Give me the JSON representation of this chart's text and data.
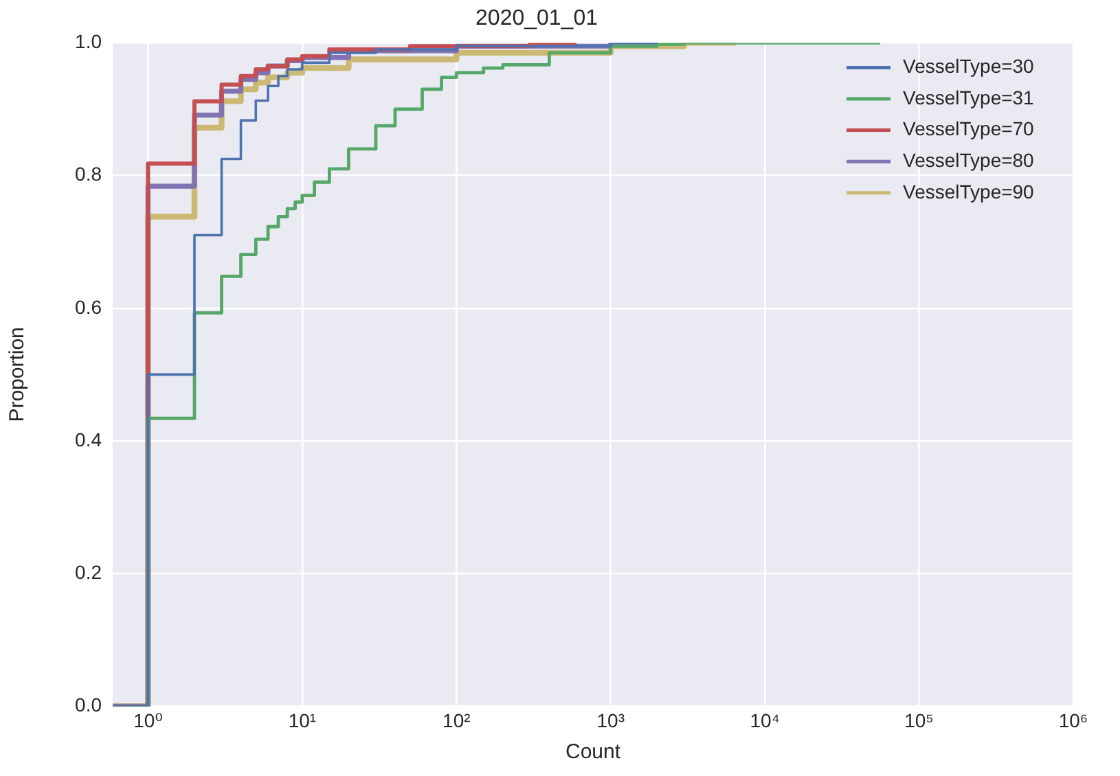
{
  "chart_data": {
    "type": "step",
    "title": "2020_01_01",
    "xlabel": "Count",
    "ylabel": "Proportion",
    "log": "x",
    "grid": true,
    "legend": "top right",
    "marker": "none",
    "line_style": "solid",
    "xlim": [
      0.59,
      1000000
    ],
    "ylim": [
      0,
      1
    ],
    "xticks": [
      {
        "value": 1,
        "label": "10⁰"
      },
      {
        "value": 10,
        "label": "10¹"
      },
      {
        "value": 100,
        "label": "10²"
      },
      {
        "value": 1000,
        "label": "10³"
      },
      {
        "value": 10000,
        "label": "10⁴"
      },
      {
        "value": 100000,
        "label": "10⁵"
      },
      {
        "value": 1000000,
        "label": "10⁶"
      }
    ],
    "yticks": [
      {
        "value": 0,
        "label": "0.0"
      },
      {
        "value": 0.2,
        "label": "0.2"
      },
      {
        "value": 0.4,
        "label": "0.4"
      },
      {
        "value": 0.6,
        "label": "0.6"
      },
      {
        "value": 0.8,
        "label": "0.8"
      },
      {
        "value": 1,
        "label": "1.0"
      }
    ],
    "series": [
      {
        "name": "VesselType=30",
        "color": "#4c72b0",
        "x": [
          0.59,
          1,
          2,
          3,
          4,
          5,
          6,
          7,
          8,
          10,
          15,
          30,
          100,
          1000,
          2000
        ],
        "values": [
          0,
          0.5,
          0.71,
          0.825,
          0.883,
          0.913,
          0.935,
          0.95,
          0.96,
          0.97,
          0.985,
          0.99,
          0.995,
          1,
          1
        ]
      },
      {
        "name": "VesselType=31",
        "color": "#55a868",
        "x": [
          0.59,
          1,
          2,
          3,
          4,
          5,
          6,
          7,
          8,
          9,
          10,
          12,
          15,
          20,
          30,
          40,
          60,
          80,
          100,
          150,
          200,
          400,
          1000,
          2000,
          3000,
          56000
        ],
        "values": [
          0,
          0.434,
          0.593,
          0.648,
          0.681,
          0.704,
          0.723,
          0.738,
          0.75,
          0.76,
          0.77,
          0.79,
          0.81,
          0.84,
          0.875,
          0.9,
          0.93,
          0.948,
          0.955,
          0.962,
          0.967,
          0.985,
          0.995,
          0.998,
          1,
          1
        ]
      },
      {
        "name": "VesselType=70",
        "color": "#c44e52",
        "x": [
          0.59,
          1,
          2,
          3,
          4,
          5,
          6,
          8,
          10,
          15,
          50,
          300,
          600
        ],
        "values": [
          0,
          0.818,
          0.912,
          0.937,
          0.95,
          0.96,
          0.965,
          0.975,
          0.98,
          0.99,
          0.995,
          1,
          1
        ]
      },
      {
        "name": "VesselType=80",
        "color": "#8172b2",
        "x": [
          0.59,
          1,
          2,
          3,
          4,
          5,
          6,
          8,
          10,
          20,
          100,
          1000,
          2000
        ],
        "values": [
          0,
          0.784,
          0.891,
          0.927,
          0.945,
          0.955,
          0.965,
          0.973,
          0.978,
          0.988,
          0.995,
          1,
          1
        ]
      },
      {
        "name": "VesselType=90",
        "color": "#ccb974",
        "x": [
          0.59,
          1,
          2,
          3,
          4,
          5,
          6,
          8,
          10,
          20,
          100,
          1000,
          3000,
          6500
        ],
        "values": [
          0,
          0.738,
          0.872,
          0.912,
          0.93,
          0.94,
          0.948,
          0.955,
          0.962,
          0.975,
          0.985,
          0.995,
          1,
          1
        ]
      }
    ]
  }
}
